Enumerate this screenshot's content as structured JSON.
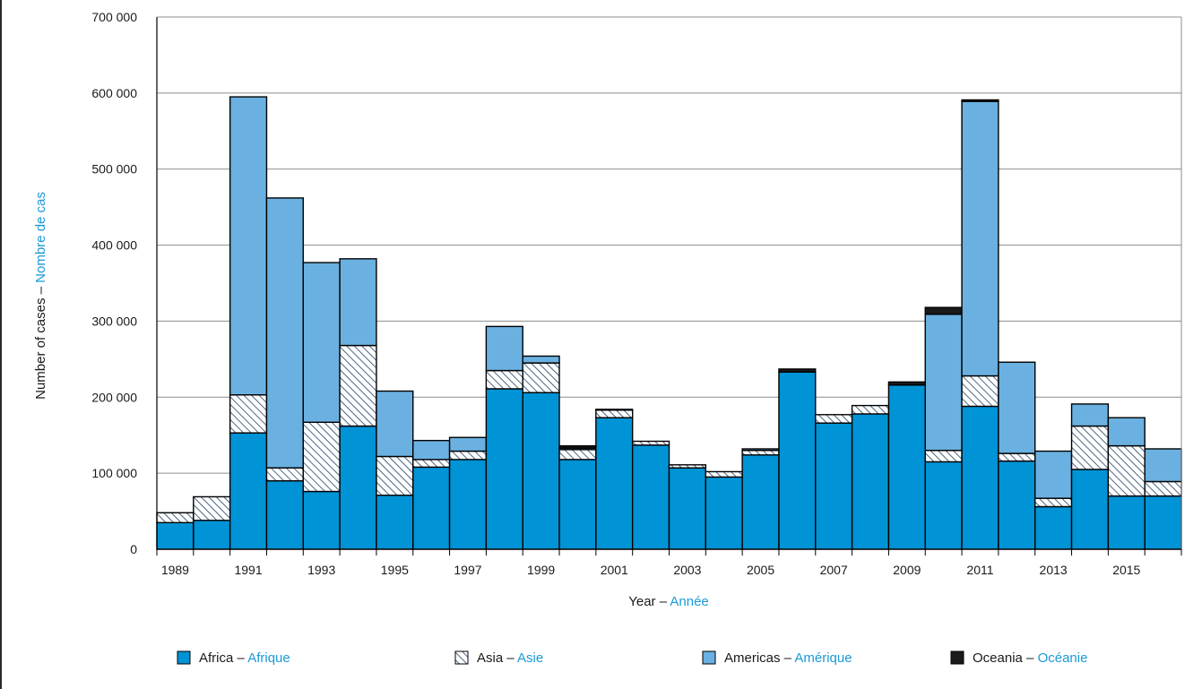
{
  "chart_data": {
    "type": "bar",
    "stacked": true,
    "xlabel": {
      "en": "Year",
      "sep": " – ",
      "fr": "Année"
    },
    "ylabel": {
      "en": "Number of cases",
      "sep": " – ",
      "fr": "Nombre de cas"
    },
    "ylim": [
      0,
      700000
    ],
    "yticks": [
      0,
      100000,
      200000,
      300000,
      400000,
      500000,
      600000,
      700000
    ],
    "ytick_labels": [
      "0",
      "100 000",
      "200 000",
      "300 000",
      "400 000",
      "500 000",
      "600 000",
      "700 000"
    ],
    "x": [
      1989,
      1990,
      1991,
      1992,
      1993,
      1994,
      1995,
      1996,
      1997,
      1998,
      1999,
      2000,
      2001,
      2002,
      2003,
      2004,
      2005,
      2006,
      2007,
      2008,
      2009,
      2010,
      2011,
      2012,
      2013,
      2014,
      2015,
      2016
    ],
    "xtick_labels": [
      "1989",
      "1991",
      "1993",
      "1995",
      "1997",
      "1999",
      "2001",
      "2003",
      "2005",
      "2007",
      "2009",
      "2011",
      "2013",
      "2015"
    ],
    "xtick_years": [
      1989,
      1991,
      1993,
      1995,
      1997,
      1999,
      2001,
      2003,
      2005,
      2007,
      2009,
      2011,
      2013,
      2015
    ],
    "grid": true,
    "legend_position": "bottom",
    "series": [
      {
        "key": "africa",
        "name": {
          "en": "Africa",
          "sep": " – ",
          "fr": "Afrique"
        },
        "color": "#0093d5",
        "pattern": "solid",
        "values": [
          35000,
          38000,
          153000,
          90000,
          76000,
          162000,
          71000,
          108000,
          118000,
          211000,
          206000,
          118000,
          173000,
          137000,
          107000,
          95000,
          124000,
          233000,
          166000,
          178000,
          216000,
          115000,
          188000,
          116000,
          56000,
          105000,
          70000,
          70000
        ]
      },
      {
        "key": "asia",
        "name": {
          "en": "Asia",
          "sep": " – ",
          "fr": "Asie"
        },
        "color": "#ffffff",
        "pattern": "hatch",
        "values": [
          13000,
          31000,
          50000,
          17000,
          91000,
          106000,
          51000,
          10000,
          11000,
          24000,
          39000,
          13000,
          10000,
          5000,
          4000,
          7000,
          6000,
          0,
          11000,
          11000,
          0,
          15000,
          40000,
          10000,
          11000,
          57000,
          66000,
          19000
        ]
      },
      {
        "key": "americas",
        "name": {
          "en": "Americas",
          "sep": " – ",
          "fr": "Amérique"
        },
        "color": "#6ab1e1",
        "pattern": "solid",
        "values": [
          0,
          0,
          392000,
          355000,
          210000,
          114000,
          86000,
          25000,
          18000,
          58000,
          9000,
          2000,
          1000,
          0,
          0,
          0,
          2000,
          0,
          0,
          0,
          0,
          179000,
          361000,
          120000,
          62000,
          29000,
          37000,
          43000
        ]
      },
      {
        "key": "oceania",
        "name": {
          "en": "Oceania",
          "sep": " – ",
          "fr": "Océanie"
        },
        "color": "#1a1a1a",
        "pattern": "solid",
        "values": [
          0,
          0,
          0,
          0,
          0,
          0,
          0,
          0,
          0,
          0,
          0,
          3000,
          0,
          0,
          0,
          0,
          0,
          4000,
          0,
          0,
          4000,
          9000,
          2000,
          0,
          0,
          0,
          0,
          0
        ]
      }
    ]
  }
}
